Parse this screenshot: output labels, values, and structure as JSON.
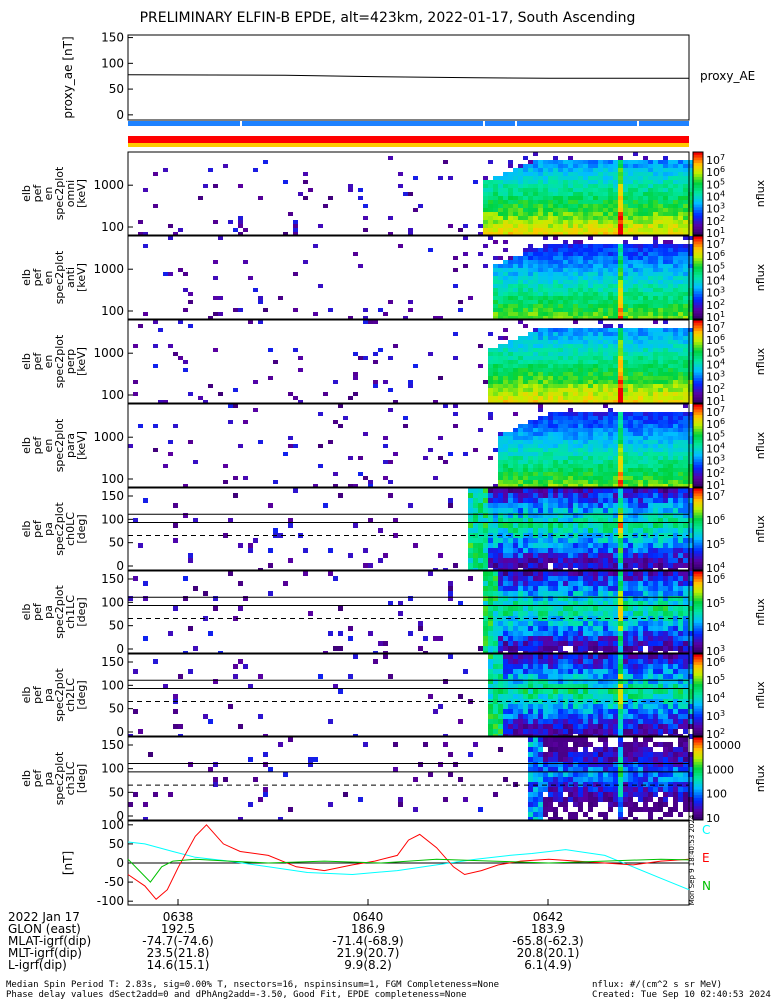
{
  "title": "PRELIMINARY ELFIN-B EPDE, alt=423km, 2022-01-17, South Ascending",
  "chart_data": [
    {
      "type": "line",
      "ylabel": "proxy_ae [nT]",
      "yticks": [
        "150",
        "100",
        "50",
        "0"
      ],
      "ylim": [
        -10,
        155
      ],
      "series": [
        {
          "name": "proxy_AE",
          "x": [
            0,
            0.28,
            0.45,
            0.62,
            0.75,
            1.0
          ],
          "values": [
            78,
            77,
            74,
            72,
            71,
            71
          ]
        }
      ]
    },
    {
      "type": "heatmap",
      "ylabel": [
        "elb",
        "pef",
        "en",
        "spec2plot",
        "omni",
        "[keV]"
      ],
      "yticks": [
        "1000",
        "100"
      ],
      "cbar_ticks": [
        "10^7",
        "10^6",
        "10^5",
        "10^4",
        "10^3",
        "10^2",
        "10^1"
      ],
      "cbar_label": "nflux"
    },
    {
      "type": "heatmap",
      "ylabel": [
        "elb",
        "pef",
        "en",
        "spec2plot",
        "anti",
        "[keV]"
      ],
      "yticks": [
        "1000",
        "100"
      ],
      "cbar_ticks": [
        "10^7",
        "10^6",
        "10^5",
        "10^4",
        "10^3",
        "10^2",
        "10^1"
      ],
      "cbar_label": "nflux"
    },
    {
      "type": "heatmap",
      "ylabel": [
        "elb",
        "pef",
        "en",
        "spec2plot",
        "perp",
        "[keV]"
      ],
      "yticks": [
        "1000",
        "100"
      ],
      "cbar_ticks": [
        "10^7",
        "10^6",
        "10^5",
        "10^4",
        "10^3",
        "10^2",
        "10^1"
      ],
      "cbar_label": "nflux"
    },
    {
      "type": "heatmap",
      "ylabel": [
        "elb",
        "pef",
        "en",
        "spec2plot",
        "para",
        "[keV]"
      ],
      "yticks": [
        "1000",
        "100"
      ],
      "cbar_ticks": [
        "10^7",
        "10^6",
        "10^5",
        "10^4",
        "10^3",
        "10^2",
        "10^1"
      ],
      "cbar_label": "nflux"
    },
    {
      "type": "heatmap",
      "ylabel": [
        "elb",
        "pef",
        "pa",
        "spec2plot",
        "ch0LC",
        "[deg]"
      ],
      "yticks": [
        "150",
        "100",
        "50",
        "0"
      ],
      "cbar_ticks": [
        "10^7",
        "10^6",
        "10^5",
        "10^4"
      ],
      "cbar_label": "nflux"
    },
    {
      "type": "heatmap",
      "ylabel": [
        "elb",
        "pef",
        "pa",
        "spec2plot",
        "ch1LC",
        "[deg]"
      ],
      "yticks": [
        "150",
        "100",
        "50",
        "0"
      ],
      "cbar_ticks": [
        "10^6",
        "10^5",
        "10^4",
        "10^3"
      ],
      "cbar_label": "nflux"
    },
    {
      "type": "heatmap",
      "ylabel": [
        "elb",
        "pef",
        "pa",
        "spec2plot",
        "ch2LC",
        "[deg]"
      ],
      "yticks": [
        "150",
        "100",
        "50",
        "0"
      ],
      "cbar_ticks": [
        "10^6",
        "10^5",
        "10^4",
        "10^3",
        "10^2"
      ],
      "cbar_label": "nflux"
    },
    {
      "type": "heatmap",
      "ylabel": [
        "elb",
        "pef",
        "pa",
        "spec2plot",
        "ch3LC",
        "[deg]"
      ],
      "yticks": [
        "150",
        "100",
        "50",
        "0"
      ],
      "cbar_ticks": [
        "10000",
        "1000",
        "100",
        "10"
      ],
      "cbar_label": "nflux"
    },
    {
      "type": "line",
      "ylabel": "[nT]",
      "yticks": [
        "100",
        "50",
        "0",
        "-50",
        "-100"
      ],
      "ylim": [
        -110,
        110
      ],
      "series": [
        {
          "name": "C",
          "color": "#00ffff",
          "x": [
            0,
            0.03,
            0.08,
            0.12,
            0.18,
            0.25,
            0.32,
            0.4,
            0.48,
            0.55,
            0.62,
            0.68,
            0.72,
            0.78,
            0.85,
            0.9,
            0.95,
            1.0
          ],
          "values": [
            55,
            50,
            30,
            15,
            5,
            -10,
            -25,
            -30,
            -20,
            -5,
            10,
            20,
            25,
            35,
            20,
            -10,
            -40,
            -70
          ]
        },
        {
          "name": "E",
          "color": "#ff0000",
          "x": [
            0,
            0.03,
            0.05,
            0.07,
            0.09,
            0.12,
            0.14,
            0.17,
            0.2,
            0.25,
            0.3,
            0.35,
            0.4,
            0.44,
            0.48,
            0.5,
            0.52,
            0.55,
            0.58,
            0.6,
            0.63,
            0.66,
            0.7,
            0.75,
            0.8,
            0.85,
            0.9,
            0.95,
            1.0
          ],
          "values": [
            -30,
            -60,
            -95,
            -70,
            -10,
            70,
            100,
            50,
            30,
            20,
            -10,
            -20,
            -5,
            5,
            20,
            60,
            75,
            40,
            -10,
            -30,
            -20,
            -5,
            5,
            10,
            5,
            0,
            -5,
            5,
            10
          ]
        },
        {
          "name": "N",
          "color": "#00c000",
          "x": [
            0,
            0.02,
            0.04,
            0.06,
            0.08,
            0.12,
            0.18,
            0.25,
            0.35,
            0.45,
            0.55,
            0.65,
            0.75,
            0.85,
            0.95,
            1.0
          ],
          "values": [
            10,
            -20,
            -50,
            -10,
            5,
            10,
            5,
            0,
            5,
            0,
            10,
            5,
            0,
            5,
            10,
            8
          ]
        }
      ]
    }
  ],
  "trace_labels": {
    "proxy": "proxy_AE",
    "c": "C",
    "e": "E",
    "n": "N"
  },
  "axis_ticks": {
    "rows": [
      {
        "label": "2022 Jan 17",
        "values": [
          "0638",
          "0640",
          "0642"
        ]
      },
      {
        "label": "GLON (east)",
        "values": [
          "192.5",
          "186.9",
          "183.9"
        ]
      },
      {
        "label": "MLAT-igrf(dip)",
        "values": [
          "-74.7(-74.6)",
          "-71.4(-68.9)",
          "-65.8(-62.3)"
        ]
      },
      {
        "label": "MLT-igrf(dip)",
        "values": [
          "23.5(21.8)",
          "21.9(20.7)",
          "20.8(20.1)"
        ]
      },
      {
        "label": "L-igrf(dip)",
        "values": [
          "14.6(15.1)",
          "9.9(8.2)",
          "6.1(4.9)"
        ]
      }
    ]
  },
  "footer": {
    "line1": "Median Spin Period T: 2.83s, sig=0.00% T, nsectors=16, nspinsinsum=1, FGM Completeness=None",
    "line2": "Phase delay values dSect2add=0 and dPhAng2add=-3.50, Good Fit, EPDE completeness=None",
    "units": "nflux: #/(cm^2 s sr MeV)",
    "created": "Created: Tue Sep 10 02:40:53 2024",
    "stamp": "Mon Sep  9 18:40:53 2024"
  },
  "colors": {
    "blue_bar": "#1e82ff",
    "red_bar": "#ff0000",
    "yellow_bar": "#ffcc00"
  }
}
